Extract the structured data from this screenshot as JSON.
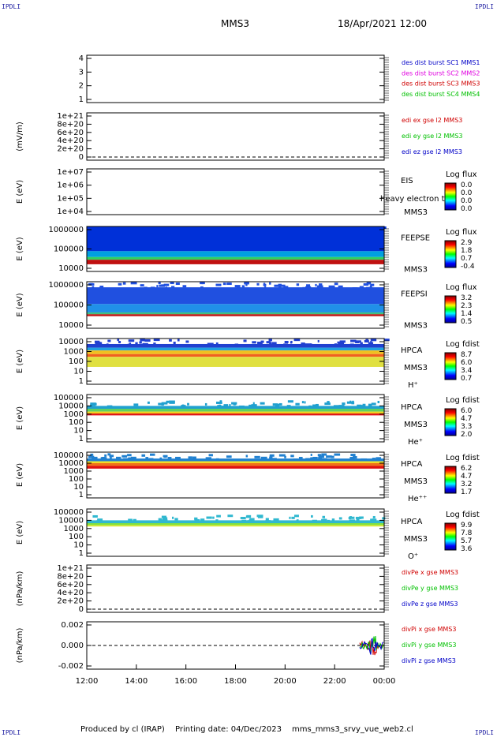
{
  "header": {
    "title": "MMS3",
    "datetime": "18/Apr/2021 12:00",
    "corner_label": "IPDLI"
  },
  "footer": {
    "produced_by": "Produced by cl (IRAP)",
    "printing_date": "Printing date: 04/Dec/2023",
    "script_name": "mms_mms3_srvy_vue_web2.cl"
  },
  "chart_data": {
    "type": "heatmap",
    "x_ticks": [
      "12:00",
      "14:00",
      "16:00",
      "18:00",
      "20:00",
      "22:00",
      "00:00"
    ],
    "panels": [
      {
        "kind": "line",
        "yticks": [
          "1",
          "2",
          "3",
          "4"
        ],
        "ylabel": "",
        "legend": [
          {
            "text": "des dist burst SC1 MMS1",
            "color": "#0000c8"
          },
          {
            "text": "des dist burst SC2 MMS2",
            "color": "#e000e0"
          },
          {
            "text": "des dist burst SC3 MMS3",
            "color": "#d00000"
          },
          {
            "text": "des dist burst SC4 MMS4",
            "color": "#00c000"
          }
        ]
      },
      {
        "kind": "line",
        "yticks": [
          "0",
          "2e+20",
          "4e+20",
          "6e+20",
          "8e+20",
          "1e+21"
        ],
        "ylabel": "(mV/m)",
        "dashed_zero": true,
        "legend": [
          {
            "text": "edi ex gse l2 MMS3",
            "color": "#d00000"
          },
          {
            "text": "edi ey gse l2 MMS3",
            "color": "#00c000"
          },
          {
            "text": "edi ez gse l2 MMS3",
            "color": "#0000c8"
          }
        ]
      },
      {
        "kind": "spectrogram",
        "yticks": [
          "1e+04",
          "1e+05",
          "1e+06",
          "1e+07"
        ],
        "ylabel": "E (eV)",
        "instrument": "EIS",
        "spacecraft": "MMS3",
        "overlay_text": "heavy electron tof",
        "colorbar_title": "Log flux",
        "colorbar_ticks": [
          "0.0",
          "0.0",
          "0.0",
          "0.0"
        ],
        "fill": []
      },
      {
        "kind": "spectrogram",
        "yticks": [
          "10000",
          "100000",
          "1000000"
        ],
        "ylabel": "E (eV)",
        "instrument": "FEEPSE",
        "spacecraft": "MMS3",
        "colorbar_title": "Log flux",
        "colorbar_ticks": [
          "2.9",
          "1.8",
          "0.7",
          "-0.4"
        ],
        "fill": [
          {
            "from": 0.0,
            "to": 0.55,
            "color": "#0030d8"
          },
          {
            "from": 0.55,
            "to": 0.68,
            "color": "#00a0e0"
          },
          {
            "from": 0.68,
            "to": 0.74,
            "color": "#30d060"
          },
          {
            "from": 0.74,
            "to": 0.84,
            "color": "#c01010"
          }
        ]
      },
      {
        "kind": "spectrogram",
        "yticks": [
          "10000",
          "100000",
          "1000000"
        ],
        "ylabel": "E (eV)",
        "instrument": "FEEPSI",
        "spacecraft": "MMS3",
        "colorbar_title": "Log flux",
        "colorbar_ticks": [
          "3.2",
          "2.3",
          "1.4",
          "0.5"
        ],
        "fill": [
          {
            "from": 0.12,
            "to": 0.48,
            "color": "#2050e0"
          },
          {
            "from": 0.48,
            "to": 0.66,
            "color": "#2090e8"
          },
          {
            "from": 0.66,
            "to": 0.7,
            "color": "#40c080"
          },
          {
            "from": 0.7,
            "to": 0.74,
            "color": "#c01010"
          }
        ]
      },
      {
        "kind": "spectrogram",
        "yticks": [
          "1",
          "10",
          "100",
          "1000",
          "10000"
        ],
        "ylabel": "E (eV)",
        "instrument": "HPCA",
        "spacecraft": "MMS3",
        "species": "H⁺",
        "colorbar_title": "Log fdist",
        "colorbar_ticks": [
          "8.7",
          "6.0",
          "3.4",
          "0.7"
        ],
        "fill": [
          {
            "from": 0.12,
            "to": 0.2,
            "color": "#2040d0"
          },
          {
            "from": 0.2,
            "to": 0.26,
            "color": "#20a0e0"
          },
          {
            "from": 0.26,
            "to": 0.34,
            "color": "#f0c020"
          },
          {
            "from": 0.34,
            "to": 0.4,
            "color": "#f06020"
          },
          {
            "from": 0.4,
            "to": 0.62,
            "color": "#e0e040"
          }
        ]
      },
      {
        "kind": "spectrogram",
        "yticks": [
          "1",
          "10",
          "100",
          "1000",
          "10000",
          "100000"
        ],
        "ylabel": "E (eV)",
        "instrument": "HPCA",
        "spacecraft": "MMS3",
        "species": "He⁺",
        "colorbar_title": "Log fdist",
        "colorbar_ticks": [
          "6.0",
          "4.7",
          "3.3",
          "2.0"
        ],
        "fill": [
          {
            "from": 0.24,
            "to": 0.3,
            "color": "#20a0d0"
          },
          {
            "from": 0.3,
            "to": 0.36,
            "color": "#60d060"
          },
          {
            "from": 0.36,
            "to": 0.4,
            "color": "#f0d020"
          },
          {
            "from": 0.4,
            "to": 0.44,
            "color": "#e01818"
          }
        ]
      },
      {
        "kind": "spectrogram",
        "yticks": [
          "1",
          "10",
          "100",
          "1000",
          "10000",
          "100000"
        ],
        "ylabel": "E (eV)",
        "instrument": "HPCA",
        "spacecraft": "MMS3",
        "species": "He⁺⁺",
        "colorbar_title": "Log fdist",
        "colorbar_ticks": [
          "6.2",
          "4.7",
          "3.2",
          "1.7"
        ],
        "fill": [
          {
            "from": 0.14,
            "to": 0.2,
            "color": "#2080d0"
          },
          {
            "from": 0.2,
            "to": 0.24,
            "color": "#f0e020"
          },
          {
            "from": 0.24,
            "to": 0.3,
            "color": "#f07018"
          },
          {
            "from": 0.3,
            "to": 0.36,
            "color": "#e01010"
          }
        ]
      },
      {
        "kind": "spectrogram",
        "yticks": [
          "1",
          "10",
          "100",
          "1000",
          "10000",
          "100000"
        ],
        "ylabel": "E (eV)",
        "instrument": "HPCA",
        "spacecraft": "MMS3",
        "species": "O⁺",
        "colorbar_title": "Log fdist",
        "colorbar_ticks": [
          "9.9",
          "7.8",
          "5.7",
          "3.6"
        ],
        "fill": [
          {
            "from": 0.24,
            "to": 0.3,
            "color": "#30b8d0"
          },
          {
            "from": 0.3,
            "to": 0.34,
            "color": "#80e040"
          },
          {
            "from": 0.34,
            "to": 0.37,
            "color": "#d8e830"
          }
        ]
      },
      {
        "kind": "line",
        "yticks": [
          "0",
          "2e+20",
          "4e+20",
          "6e+20",
          "8e+20",
          "1e+21"
        ],
        "ylabel": "(nPa/km)",
        "dashed_zero": true,
        "legend": [
          {
            "text": "divPe x gse MMS3",
            "color": "#d00000"
          },
          {
            "text": "divPe y gse MMS3",
            "color": "#00c000"
          },
          {
            "text": "divPe z gse MMS3",
            "color": "#0000c8"
          }
        ]
      },
      {
        "kind": "line",
        "yticks": [
          "-0.002",
          "0.000",
          "0.002"
        ],
        "ylabel": "(nPa/km)",
        "dashed_zero": true,
        "ylim": [
          -0.003,
          0.003
        ],
        "legend": [
          {
            "text": "divPi x gse MMS3",
            "color": "#d00000"
          },
          {
            "text": "divPi y gse MMS3",
            "color": "#00c000"
          },
          {
            "text": "divPi z gse MMS3",
            "color": "#0000c8"
          }
        ]
      }
    ]
  }
}
